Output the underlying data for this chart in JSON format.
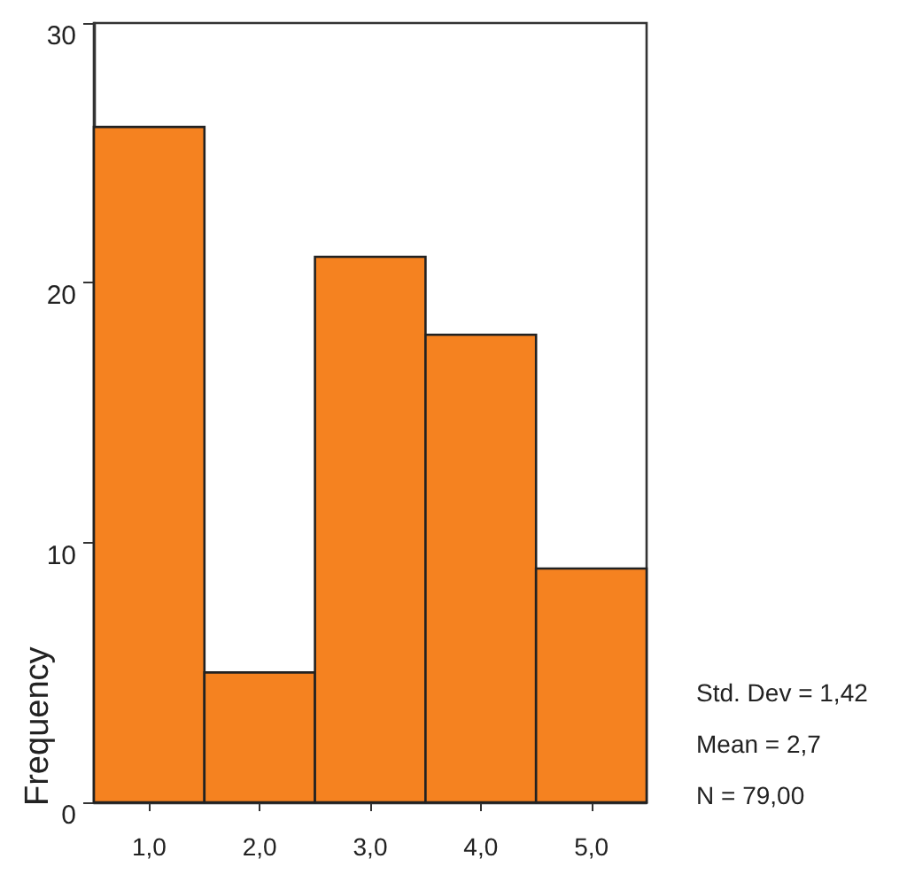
{
  "chart_data": {
    "type": "histogram",
    "bins": [
      0.5,
      1.5,
      2.5,
      3.5,
      4.5,
      5.5
    ],
    "values": [
      26,
      5,
      21,
      18,
      9
    ],
    "color": "#f58220",
    "ylabel": "Frequency",
    "xlim": [
      0.5,
      5.5
    ],
    "xticks": [
      {
        "value": 1,
        "label": "1,0"
      },
      {
        "value": 2,
        "label": "2,0"
      },
      {
        "value": 3,
        "label": "3,0"
      },
      {
        "value": 4,
        "label": "4,0"
      },
      {
        "value": 5,
        "label": "5,0"
      }
    ],
    "ylim": [
      0,
      30
    ],
    "yticks": [
      0,
      10,
      20,
      30
    ],
    "grid": false,
    "annotations": [
      "Std. Dev = 1,42",
      "Mean = 2,7",
      "N = 79,00"
    ]
  }
}
